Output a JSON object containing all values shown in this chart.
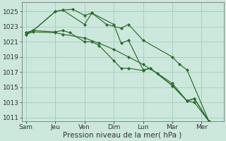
{
  "background_color": "#cce8dc",
  "grid_color": "#aacfbf",
  "line_color": "#2d6b2d",
  "xlabel": "Pression niveau de la mer( hPa )",
  "xlabel_fontsize": 7.5,
  "tick_fontsize": 6.5,
  "ylim": [
    1010.5,
    1026.2
  ],
  "yticks": [
    1011,
    1013,
    1015,
    1017,
    1019,
    1021,
    1023,
    1025
  ],
  "x_labels": [
    "Sam",
    "Jeu",
    "Ven",
    "Dim",
    "Lun",
    "Mar",
    "Mer"
  ],
  "x_positions": [
    0,
    2,
    4,
    6,
    8,
    10,
    12
  ],
  "xlim": [
    -0.3,
    13.5
  ],
  "series1_x": [
    0,
    0.5,
    2.0,
    2.5,
    3.0,
    4.0,
    4.5,
    5.0,
    6.0,
    6.5,
    7.0,
    8.0,
    8.5,
    10.0,
    11.0,
    11.5,
    12.5
  ],
  "series1_y": [
    1022.2,
    1022.5,
    1022.3,
    1022.5,
    1022.2,
    1021.0,
    1021.0,
    1020.5,
    1018.5,
    1017.5,
    1017.5,
    1017.2,
    1017.5,
    1015.2,
    1013.2,
    1013.5,
    1010.5
  ],
  "series2_x": [
    0,
    0.5,
    2.0,
    2.5,
    4.0,
    4.5,
    6.0,
    6.5,
    7.0,
    8.0,
    8.5,
    10.0,
    11.0,
    11.5,
    12.5
  ],
  "series2_y": [
    1022.2,
    1022.5,
    1025.0,
    1025.2,
    1023.3,
    1024.8,
    1023.3,
    1020.8,
    1021.2,
    1017.3,
    1017.5,
    1015.2,
    1013.2,
    1013.5,
    1010.5
  ],
  "series3_x": [
    0,
    0.5,
    2.0,
    2.5,
    3.2,
    4.0,
    4.5,
    5.5,
    6.5,
    7.0,
    8.0,
    10.0,
    10.5,
    11.0,
    12.5
  ],
  "series3_y": [
    1022.0,
    1022.5,
    1025.0,
    1025.2,
    1025.3,
    1024.5,
    1024.8,
    1023.3,
    1022.8,
    1023.3,
    1021.2,
    1019.0,
    1018.0,
    1017.3,
    1010.5
  ],
  "series4_x": [
    0,
    0.5,
    2.0,
    2.5,
    4.0,
    5.0,
    6.0,
    7.0,
    8.0,
    9.0,
    10.0,
    11.0,
    11.5,
    12.5
  ],
  "series4_y": [
    1022.0,
    1022.3,
    1022.2,
    1022.0,
    1021.5,
    1020.8,
    1020.0,
    1019.0,
    1018.0,
    1016.8,
    1015.5,
    1013.2,
    1013.0,
    1010.5
  ]
}
